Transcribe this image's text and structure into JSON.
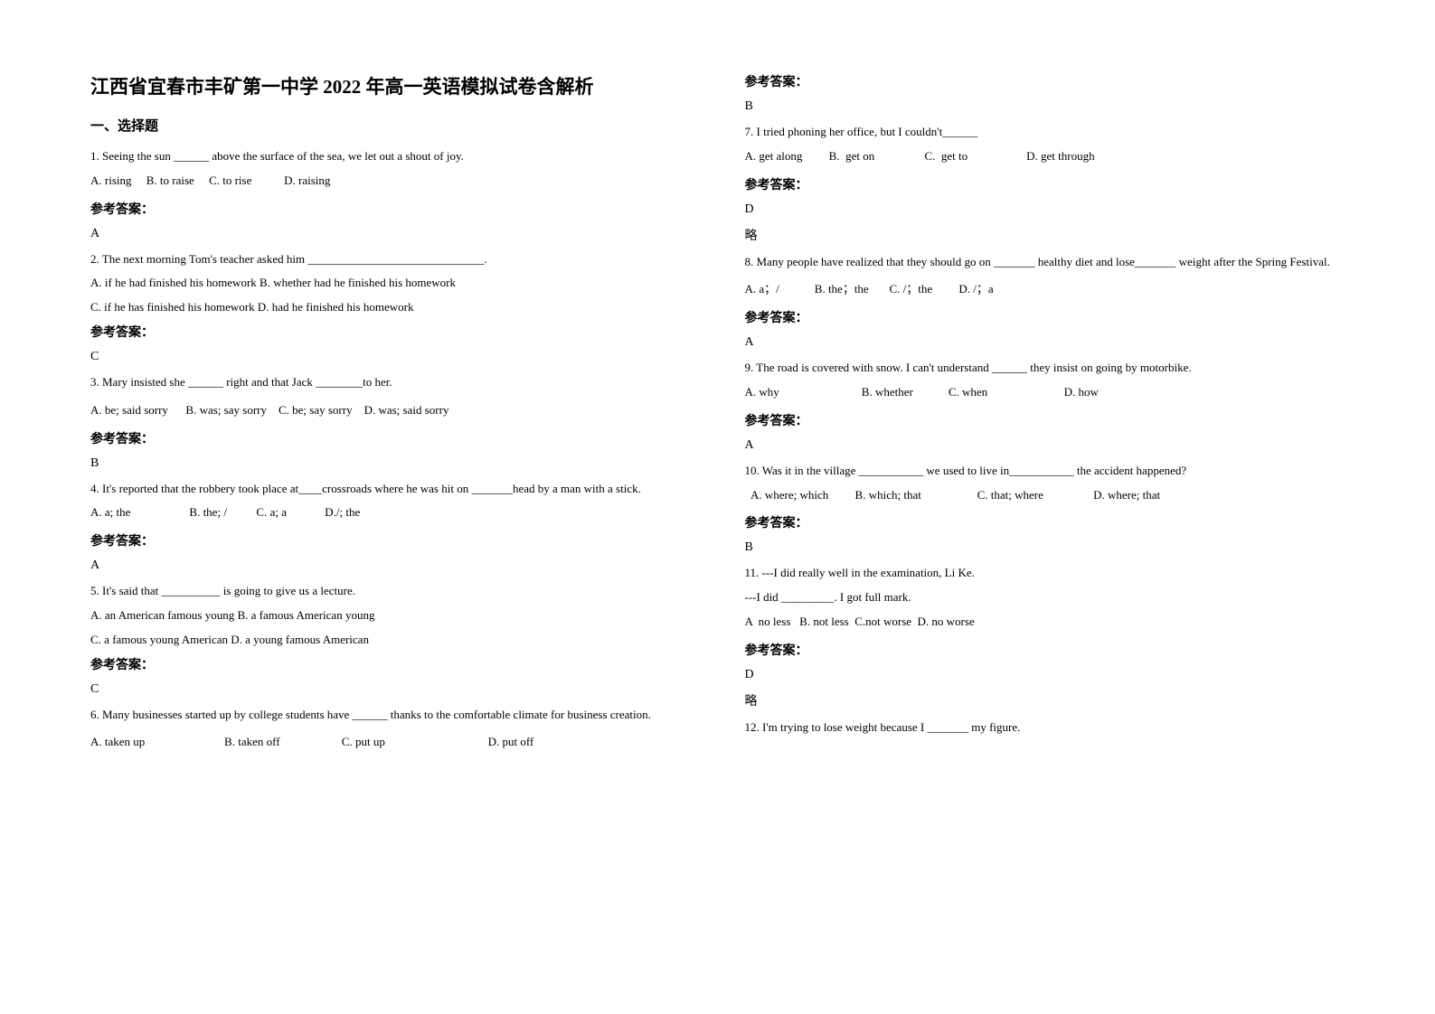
{
  "title": "江西省宜春市丰矿第一中学 2022 年高一英语模拟试卷含解析",
  "section_header": "一、选择题",
  "answer_label": "参考答案：",
  "note_omit": "略",
  "left": {
    "q1": {
      "text": "1. Seeing the sun ______ above the surface of the sea, we let out a shout of joy.",
      "opts": "A. rising     B. to raise     C. to rise           D. raising",
      "ans": "A"
    },
    "q2": {
      "text": "2. The next morning Tom's teacher asked him ______________________________.",
      "opts_a": "A. if he had finished his homework        B. whether had he finished his homework",
      "opts_b": "C. if he has finished his homework         D. had he finished his homework",
      "ans": "C"
    },
    "q3": {
      "text": "3. Mary insisted she ______ right and that Jack ________to her.",
      "opts": "A. be; said sorry      B. was; say sorry    C. be; say sorry    D. was; said sorry",
      "ans": "B"
    },
    "q4": {
      "text": "4. It's reported that the robbery took place at____crossroads where he was hit on _______head by a man with a stick.",
      "opts": "A. a; the                    B. the; /          C. a; a             D./; the",
      "ans": "A"
    },
    "q5": {
      "text": "5. It's said that __________ is going to give us a lecture.",
      "opts_a": "A. an American famous young        B. a famous American young",
      "opts_b": "C. a famous young American       D. a young famous American",
      "ans": "C"
    },
    "q6": {
      "text": "6. Many businesses started up by college students have ______ thanks to the comfortable climate for    business creation.",
      "opts": "A. taken up                           B. taken off                     C. put up                                   D. put off"
    }
  },
  "right": {
    "q6_ans": "B",
    "q7": {
      "text": "7.  I tried phoning her office, but I couldn't______",
      "opts": "A. get along         B.  get on                 C.  get to                    D. get through",
      "ans": "D"
    },
    "q8": {
      "text": "8. Many people have realized that they should go on _______ healthy diet and lose_______ weight after the Spring Festival.",
      "opts": "A. a；/            B. the；the       C. /；the         D. /；a",
      "ans": "A"
    },
    "q9": {
      "text": "9.  The road is covered with snow. I can't understand ______ they insist on going by motorbike.",
      "opts": "A. why                            B. whether            C. when                          D. how",
      "ans": "A"
    },
    "q10": {
      "text": "10.  Was it in the village ___________ we used to live in___________ the accident happened?",
      "opts": "  A. where; which         B. which; that                   C. that; where                 D. where; that",
      "ans": "B"
    },
    "q11": {
      "text": "11. ---I did really well in the examination, Li Ke.",
      "text2": "---I did _________. I got full mark.",
      "opts": "A  no less   B. not less  C.not worse  D. no worse",
      "ans": "D"
    },
    "q12": {
      "text": "12. I'm trying to lose weight because I _______ my figure."
    }
  }
}
